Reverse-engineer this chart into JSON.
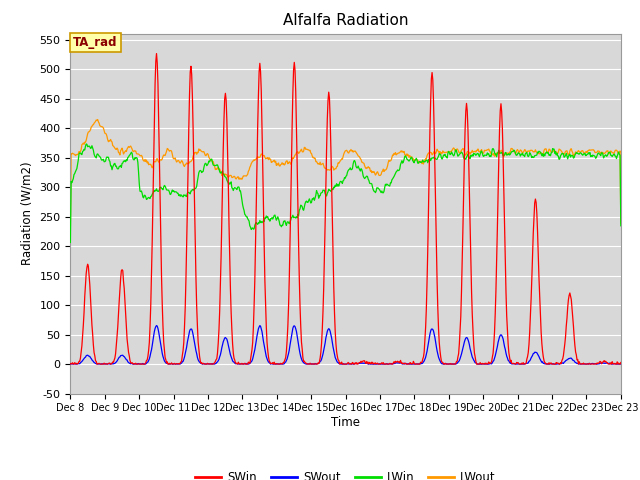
{
  "title": "Alfalfa Radiation",
  "xlabel": "Time",
  "ylabel": "Radiation (W/m2)",
  "ylim": [
    -50,
    560
  ],
  "yticks": [
    -50,
    0,
    50,
    100,
    150,
    200,
    250,
    300,
    350,
    400,
    450,
    500,
    550
  ],
  "plot_bg_color": "#d8d8d8",
  "fig_bg_color": "#ffffff",
  "colors": {
    "SWin": "#ff0000",
    "SWout": "#0000ff",
    "LWin": "#00dd00",
    "LWout": "#ff9900"
  },
  "annotation_text": "TA_rad",
  "annotation_bg": "#ffffaa",
  "annotation_border": "#cc9900",
  "sw_peaks": [
    170,
    160,
    525,
    505,
    460,
    510,
    510,
    460,
    5,
    5,
    495,
    440,
    440,
    280,
    120,
    5
  ],
  "swout_peaks": [
    15,
    15,
    65,
    60,
    45,
    65,
    65,
    60,
    2,
    2,
    60,
    45,
    50,
    20,
    10,
    2
  ],
  "lwin_profile": [
    300,
    310,
    320,
    325,
    330,
    340,
    350,
    355,
    360,
    365,
    368,
    370,
    372,
    370,
    368,
    365,
    362,
    360,
    358,
    356,
    355,
    353,
    351,
    350,
    348,
    346,
    344,
    342,
    340,
    338,
    336,
    334,
    333,
    332,
    332,
    333,
    335,
    338,
    342,
    346,
    350,
    354,
    356,
    357,
    356,
    354,
    352,
    350,
    295,
    290,
    285,
    283,
    282,
    281,
    281,
    282,
    284,
    287,
    290,
    293,
    295,
    297,
    298,
    299,
    299,
    298,
    297,
    296,
    295,
    294,
    293,
    292,
    291,
    290,
    289,
    288,
    287,
    286,
    285,
    285,
    286,
    287,
    288,
    290,
    292,
    295,
    298,
    302,
    308,
    315,
    322,
    328,
    333,
    337,
    340,
    342,
    343,
    343,
    342,
    340,
    338,
    335,
    332,
    329,
    326,
    323,
    320,
    317,
    314,
    311,
    308,
    305,
    302,
    299,
    297,
    295,
    294,
    293,
    293,
    294,
    260,
    250,
    244,
    240,
    237,
    235,
    233,
    232,
    232,
    233,
    234,
    236,
    238,
    240,
    242,
    244,
    245,
    246,
    247,
    247,
    247,
    246,
    245,
    244,
    243,
    242,
    241,
    240,
    240,
    240,
    240,
    241,
    242,
    244,
    246,
    248,
    250,
    253,
    256,
    259,
    262,
    265,
    268,
    270,
    272,
    274,
    276,
    278,
    280,
    282,
    284,
    286,
    288,
    290,
    291,
    292,
    292,
    292,
    292,
    292,
    293,
    294,
    295,
    297,
    298,
    300,
    302,
    305,
    308,
    312,
    316,
    320,
    324,
    328,
    332,
    335,
    337,
    338,
    337,
    335,
    332,
    329,
    326,
    323,
    320,
    317,
    314,
    311,
    308,
    305,
    302,
    299,
    297,
    295,
    294,
    293,
    293,
    293,
    294,
    296,
    298,
    300,
    303,
    306,
    310,
    315,
    320,
    325,
    330,
    335,
    340,
    344,
    347,
    349,
    350,
    350,
    349,
    348,
    347,
    346,
    345,
    344,
    343,
    342,
    342,
    342,
    342,
    343,
    344,
    345,
    346,
    347,
    348,
    349,
    350,
    351,
    352,
    353,
    354,
    355,
    355,
    355,
    355,
    355,
    355,
    355,
    355,
    355,
    355,
    355,
    355,
    355,
    355,
    355,
    355,
    355,
    355,
    355,
    355,
    355,
    355,
    355,
    355,
    355,
    355,
    355,
    355,
    355,
    355,
    355,
    355,
    355,
    355,
    355,
    355,
    355,
    355,
    355,
    355,
    355,
    355,
    355,
    355,
    355,
    355,
    355,
    355,
    355,
    355,
    355,
    355,
    355,
    355,
    355,
    355,
    355,
    355,
    355,
    355,
    355,
    355,
    355,
    355,
    355,
    355,
    355,
    355,
    355,
    355,
    355,
    355,
    355,
    355,
    355,
    355,
    355,
    355,
    355,
    355,
    355,
    355,
    355,
    355,
    355,
    355,
    355,
    355,
    355,
    355,
    355,
    355,
    355,
    355,
    355,
    355,
    355,
    355,
    355,
    355,
    355,
    355,
    355,
    355,
    355,
    355,
    355,
    355,
    355,
    355,
    355,
    355,
    355,
    355,
    355,
    355,
    355,
    355,
    355,
    355,
    355,
    355,
    355,
    355,
    355,
    355,
    355,
    355,
    355,
    355,
    355,
    355,
    355,
    355,
    355,
    355,
    355,
    355,
    355,
    355,
    355,
    355,
    355,
    355,
    355,
    355,
    355,
    355,
    355
  ],
  "lwout_profile": [
    352,
    353,
    354,
    355,
    356,
    358,
    360,
    363,
    368,
    373,
    378,
    383,
    388,
    393,
    398,
    403,
    407,
    410,
    411,
    410,
    407,
    403,
    399,
    395,
    391,
    387,
    383,
    379,
    375,
    371,
    368,
    366,
    364,
    362,
    361,
    361,
    361,
    361,
    361,
    362,
    363,
    364,
    365,
    364,
    363,
    361,
    359,
    357,
    355,
    352,
    349,
    346,
    343,
    341,
    339,
    338,
    338,
    339,
    340,
    342,
    344,
    347,
    350,
    352,
    354,
    356,
    357,
    358,
    357,
    356,
    354,
    352,
    350,
    348,
    346,
    344,
    342,
    340,
    339,
    338,
    338,
    339,
    340,
    342,
    345,
    349,
    353,
    357,
    360,
    362,
    363,
    363,
    362,
    360,
    357,
    354,
    351,
    348,
    344,
    341,
    338,
    335,
    332,
    329,
    327,
    325,
    324,
    323,
    322,
    321,
    320,
    319,
    318,
    317,
    316,
    316,
    316,
    316,
    317,
    318,
    319,
    320,
    322,
    325,
    328,
    332,
    336,
    340,
    344,
    347,
    349,
    351,
    352,
    352,
    352,
    351,
    350,
    349,
    348,
    347,
    346,
    345,
    344,
    343,
    342,
    341,
    340,
    339,
    338,
    338,
    338,
    338,
    339,
    341,
    343,
    346,
    349,
    353,
    357,
    360,
    363,
    365,
    366,
    366,
    365,
    363,
    361,
    358,
    355,
    352,
    349,
    346,
    343,
    340,
    338,
    336,
    334,
    332,
    331,
    330,
    330,
    330,
    330,
    331,
    332,
    334,
    337,
    340,
    344,
    348,
    352,
    355,
    358,
    360,
    361,
    362,
    361,
    360,
    358,
    356,
    353,
    350,
    348,
    345,
    342,
    339,
    336,
    333,
    330,
    327,
    325,
    323,
    322,
    321,
    321,
    322,
    323,
    325,
    327,
    330,
    334,
    338,
    342,
    346,
    350,
    353,
    356,
    358,
    360,
    361,
    361,
    360,
    359,
    357,
    355,
    353,
    351,
    349,
    347,
    346,
    345,
    344,
    343,
    343,
    344,
    345,
    347,
    349,
    351,
    353,
    355,
    357,
    358,
    359,
    360,
    360,
    360,
    360,
    360,
    360,
    360,
    360,
    360,
    360,
    360,
    360,
    360,
    360,
    360,
    360,
    360,
    360,
    360,
    360,
    360,
    360,
    360,
    360,
    360,
    360,
    360,
    360,
    360,
    360,
    360,
    360,
    360,
    360,
    360,
    360,
    360,
    360,
    360,
    360,
    360,
    360,
    360,
    360,
    360,
    360,
    360,
    360,
    360,
    360,
    360,
    360,
    360,
    360,
    360,
    360,
    360,
    360,
    360,
    360,
    360,
    360,
    360,
    360,
    360,
    360,
    360,
    360,
    360,
    360,
    360,
    360,
    360,
    360,
    360,
    360,
    360,
    360,
    360,
    360,
    360,
    360,
    360,
    360,
    360,
    360,
    360,
    360,
    360,
    360,
    360,
    360,
    360,
    360,
    360,
    360,
    360,
    360,
    360,
    360,
    360,
    360,
    360,
    360,
    360,
    360,
    360,
    360,
    360,
    360,
    360,
    360,
    360,
    360,
    360,
    360,
    360,
    360,
    360,
    360,
    360,
    360,
    360,
    360,
    360,
    360,
    360,
    360,
    360,
    360,
    360,
    360,
    360,
    360,
    360,
    360,
    360,
    360,
    360,
    360,
    360,
    360,
    360,
    360,
    360,
    360,
    360,
    360,
    360,
    360,
    360,
    360,
    360,
    360
  ]
}
